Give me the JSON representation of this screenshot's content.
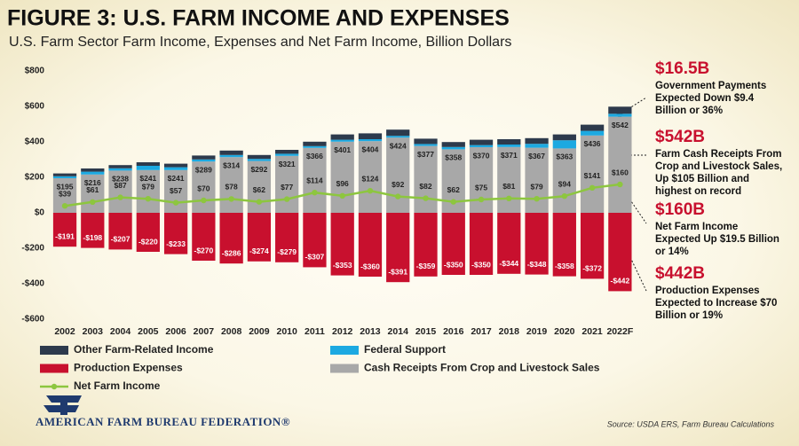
{
  "chart_data": {
    "type": "bar",
    "title": "FIGURE 3: U.S. FARM INCOME AND EXPENSES",
    "subtitle": "U.S. Farm Sector Farm Income, Expenses and Net Farm Income, Billion Dollars",
    "categories": [
      "2002",
      "2003",
      "2004",
      "2005",
      "2006",
      "2007",
      "2008",
      "2009",
      "2010",
      "2011",
      "2012",
      "2013",
      "2014",
      "2015",
      "2016",
      "2017",
      "2018",
      "2019",
      "2020",
      "2021",
      "2022F"
    ],
    "stacked": true,
    "series": [
      {
        "name": "Other Farm-Related Income",
        "color": "#2d3a4c",
        "values": [
          16,
          18,
          18,
          20,
          20,
          22,
          25,
          22,
          22,
          25,
          30,
          33,
          35,
          30,
          28,
          30,
          30,
          32,
          33,
          35,
          40
        ]
      },
      {
        "name": "Federal Support",
        "color": "#1ca9e1",
        "values": [
          11,
          16,
          13,
          24,
          16,
          12,
          12,
          12,
          12,
          10,
          11,
          11,
          10,
          11,
          13,
          12,
          14,
          22,
          46,
          26,
          16.5
        ]
      },
      {
        "name": "Production Expenses",
        "color": "#c8102e",
        "values": [
          -191,
          -198,
          -207,
          -220,
          -233,
          -270,
          -286,
          -274,
          -279,
          -307,
          -353,
          -360,
          -391,
          -359,
          -350,
          -350,
          -344,
          -348,
          -358,
          -372,
          -442
        ],
        "value_labels": [
          "-$191",
          "-$198",
          "-$207",
          "-$220",
          "-$233",
          "-$270",
          "-$286",
          "-$274",
          "-$279",
          "-$307",
          "-$353",
          "-$360",
          "-$391",
          "-$359",
          "-$350",
          "-$350",
          "-$344",
          "-$348",
          "-$358",
          "-$372",
          "-$442"
        ]
      },
      {
        "name": "Cash Receipts From Crop and Livestock Sales",
        "color": "#a8a8a8",
        "values": [
          195,
          216,
          238,
          241,
          241,
          289,
          314,
          292,
          321,
          366,
          401,
          404,
          424,
          377,
          358,
          370,
          371,
          367,
          363,
          436,
          542
        ],
        "value_labels": [
          "$195",
          "$216",
          "$238",
          "$241",
          "$241",
          "$289",
          "$314",
          "$292",
          "$321",
          "$366",
          "$401",
          "$404",
          "$424",
          "$377",
          "$358",
          "$370",
          "$371",
          "$367",
          "$363",
          "$436",
          "$542"
        ]
      },
      {
        "name": "Net Farm Income",
        "type": "line",
        "color": "#8dc63f",
        "values": [
          39,
          61,
          87,
          79,
          57,
          70,
          78,
          62,
          77,
          114,
          96,
          124,
          92,
          82,
          62,
          75,
          81,
          79,
          94,
          141,
          160
        ],
        "value_labels": [
          "$39",
          "$61",
          "$87",
          "$79",
          "$57",
          "$70",
          "$78",
          "$62",
          "$77",
          "$114",
          "$96",
          "$124",
          "$92",
          "$82",
          "$62",
          "$75",
          "$81",
          "$79",
          "$94",
          "$141",
          "$160"
        ]
      }
    ],
    "ylim": [
      -600,
      800
    ],
    "yticks": [
      {
        "value": -600,
        "label": "-$600"
      },
      {
        "value": -400,
        "label": "-$400"
      },
      {
        "value": -200,
        "label": "-$200"
      },
      {
        "value": 0,
        "label": "$0"
      },
      {
        "value": 200,
        "label": "$200"
      },
      {
        "value": 400,
        "label": "$400"
      },
      {
        "value": 600,
        "label": "$600"
      },
      {
        "value": 800,
        "label": "$800"
      }
    ],
    "grid": false,
    "annotations": [
      {
        "headline": "$16.5B",
        "text": [
          "Government Payments",
          "Expected Down $9.4",
          "Billion or 36%"
        ]
      },
      {
        "headline": "$542B",
        "text": [
          "Farm Cash Receipts From",
          "Crop and Livestock Sales,",
          "Up  $105 Billion and",
          "highest on record"
        ]
      },
      {
        "headline": "$160B",
        "text": [
          "Net Farm Income",
          "Expected Up $19.5 Billion",
          "or 14%"
        ]
      },
      {
        "headline": "$442B",
        "text": [
          "Production Expenses",
          "Expected to Increase $70",
          "Billion or 19%"
        ]
      }
    ],
    "source": "Source: USDA ERS, Farm Bureau Calculations",
    "organization": "AMERICAN FARM BUREAU FEDERATION®"
  }
}
